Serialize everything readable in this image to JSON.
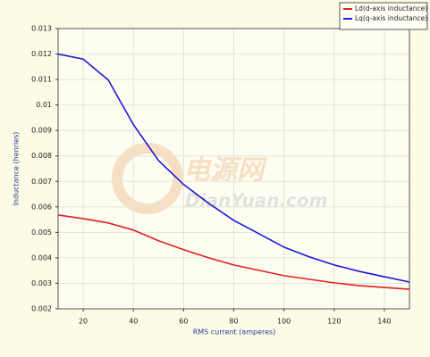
{
  "chart_data": {
    "type": "line",
    "x_label": "RMS current (amperes)",
    "y_label": "Inductance (henries)",
    "annotations": [
      "电源网",
      "DianYuan.com"
    ],
    "x": [
      10,
      20,
      30,
      40,
      50,
      60,
      70,
      80,
      90,
      100,
      110,
      120,
      130,
      140,
      150
    ],
    "series": [
      {
        "name": "Ld(d-axis inductance)",
        "color": "#e02020",
        "values": [
          0.00568,
          0.00554,
          0.00537,
          0.00509,
          0.00467,
          0.00432,
          0.004,
          0.00372,
          0.00351,
          0.0033,
          0.00316,
          0.00302,
          0.00291,
          0.00284,
          0.00277
        ]
      },
      {
        "name": "Lq(q-axis inductance)",
        "color": "#1a1ad8",
        "values": [
          0.012,
          0.0118,
          0.01098,
          0.00923,
          0.00782,
          0.00688,
          0.00614,
          0.00547,
          0.00495,
          0.00442,
          0.00404,
          0.00372,
          0.00347,
          0.00326,
          0.00305
        ]
      }
    ],
    "xlim": [
      10,
      150
    ],
    "xticks": [
      20,
      40,
      60,
      80,
      100,
      120,
      140
    ],
    "ylim": [
      0.002,
      0.013
    ],
    "yticks": [
      0.002,
      0.003,
      0.004,
      0.005,
      0.006,
      0.007,
      0.008,
      0.009,
      0.01,
      0.011,
      0.012,
      0.013
    ],
    "grid": true,
    "legend": "top-right"
  }
}
